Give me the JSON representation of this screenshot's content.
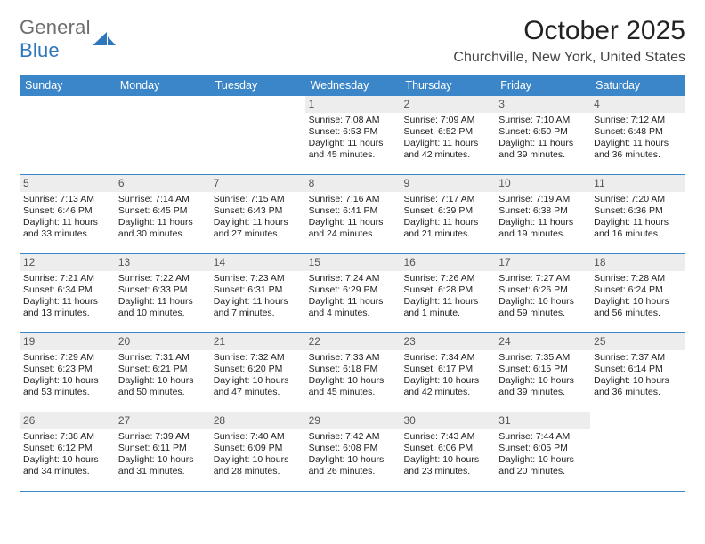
{
  "logo": {
    "word1": "General",
    "word2": "Blue"
  },
  "title": "October 2025",
  "location": "Churchville, New York, United States",
  "day_headers": [
    "Sunday",
    "Monday",
    "Tuesday",
    "Wednesday",
    "Thursday",
    "Friday",
    "Saturday"
  ],
  "colors": {
    "header_bg": "#3b86c9",
    "header_text": "#ffffff",
    "daynum_bg": "#ededed",
    "row_border": "#3b86c9",
    "logo_gray": "#6d6d6d",
    "logo_blue": "#2f77bd"
  },
  "weeks": [
    [
      {
        "blank": true
      },
      {
        "blank": true
      },
      {
        "blank": true
      },
      {
        "num": "1",
        "sunrise": "Sunrise: 7:08 AM",
        "sunset": "Sunset: 6:53 PM",
        "daylight": "Daylight: 11 hours and 45 minutes."
      },
      {
        "num": "2",
        "sunrise": "Sunrise: 7:09 AM",
        "sunset": "Sunset: 6:52 PM",
        "daylight": "Daylight: 11 hours and 42 minutes."
      },
      {
        "num": "3",
        "sunrise": "Sunrise: 7:10 AM",
        "sunset": "Sunset: 6:50 PM",
        "daylight": "Daylight: 11 hours and 39 minutes."
      },
      {
        "num": "4",
        "sunrise": "Sunrise: 7:12 AM",
        "sunset": "Sunset: 6:48 PM",
        "daylight": "Daylight: 11 hours and 36 minutes."
      }
    ],
    [
      {
        "num": "5",
        "sunrise": "Sunrise: 7:13 AM",
        "sunset": "Sunset: 6:46 PM",
        "daylight": "Daylight: 11 hours and 33 minutes."
      },
      {
        "num": "6",
        "sunrise": "Sunrise: 7:14 AM",
        "sunset": "Sunset: 6:45 PM",
        "daylight": "Daylight: 11 hours and 30 minutes."
      },
      {
        "num": "7",
        "sunrise": "Sunrise: 7:15 AM",
        "sunset": "Sunset: 6:43 PM",
        "daylight": "Daylight: 11 hours and 27 minutes."
      },
      {
        "num": "8",
        "sunrise": "Sunrise: 7:16 AM",
        "sunset": "Sunset: 6:41 PM",
        "daylight": "Daylight: 11 hours and 24 minutes."
      },
      {
        "num": "9",
        "sunrise": "Sunrise: 7:17 AM",
        "sunset": "Sunset: 6:39 PM",
        "daylight": "Daylight: 11 hours and 21 minutes."
      },
      {
        "num": "10",
        "sunrise": "Sunrise: 7:19 AM",
        "sunset": "Sunset: 6:38 PM",
        "daylight": "Daylight: 11 hours and 19 minutes."
      },
      {
        "num": "11",
        "sunrise": "Sunrise: 7:20 AM",
        "sunset": "Sunset: 6:36 PM",
        "daylight": "Daylight: 11 hours and 16 minutes."
      }
    ],
    [
      {
        "num": "12",
        "sunrise": "Sunrise: 7:21 AM",
        "sunset": "Sunset: 6:34 PM",
        "daylight": "Daylight: 11 hours and 13 minutes."
      },
      {
        "num": "13",
        "sunrise": "Sunrise: 7:22 AM",
        "sunset": "Sunset: 6:33 PM",
        "daylight": "Daylight: 11 hours and 10 minutes."
      },
      {
        "num": "14",
        "sunrise": "Sunrise: 7:23 AM",
        "sunset": "Sunset: 6:31 PM",
        "daylight": "Daylight: 11 hours and 7 minutes."
      },
      {
        "num": "15",
        "sunrise": "Sunrise: 7:24 AM",
        "sunset": "Sunset: 6:29 PM",
        "daylight": "Daylight: 11 hours and 4 minutes."
      },
      {
        "num": "16",
        "sunrise": "Sunrise: 7:26 AM",
        "sunset": "Sunset: 6:28 PM",
        "daylight": "Daylight: 11 hours and 1 minute."
      },
      {
        "num": "17",
        "sunrise": "Sunrise: 7:27 AM",
        "sunset": "Sunset: 6:26 PM",
        "daylight": "Daylight: 10 hours and 59 minutes."
      },
      {
        "num": "18",
        "sunrise": "Sunrise: 7:28 AM",
        "sunset": "Sunset: 6:24 PM",
        "daylight": "Daylight: 10 hours and 56 minutes."
      }
    ],
    [
      {
        "num": "19",
        "sunrise": "Sunrise: 7:29 AM",
        "sunset": "Sunset: 6:23 PM",
        "daylight": "Daylight: 10 hours and 53 minutes."
      },
      {
        "num": "20",
        "sunrise": "Sunrise: 7:31 AM",
        "sunset": "Sunset: 6:21 PM",
        "daylight": "Daylight: 10 hours and 50 minutes."
      },
      {
        "num": "21",
        "sunrise": "Sunrise: 7:32 AM",
        "sunset": "Sunset: 6:20 PM",
        "daylight": "Daylight: 10 hours and 47 minutes."
      },
      {
        "num": "22",
        "sunrise": "Sunrise: 7:33 AM",
        "sunset": "Sunset: 6:18 PM",
        "daylight": "Daylight: 10 hours and 45 minutes."
      },
      {
        "num": "23",
        "sunrise": "Sunrise: 7:34 AM",
        "sunset": "Sunset: 6:17 PM",
        "daylight": "Daylight: 10 hours and 42 minutes."
      },
      {
        "num": "24",
        "sunrise": "Sunrise: 7:35 AM",
        "sunset": "Sunset: 6:15 PM",
        "daylight": "Daylight: 10 hours and 39 minutes."
      },
      {
        "num": "25",
        "sunrise": "Sunrise: 7:37 AM",
        "sunset": "Sunset: 6:14 PM",
        "daylight": "Daylight: 10 hours and 36 minutes."
      }
    ],
    [
      {
        "num": "26",
        "sunrise": "Sunrise: 7:38 AM",
        "sunset": "Sunset: 6:12 PM",
        "daylight": "Daylight: 10 hours and 34 minutes."
      },
      {
        "num": "27",
        "sunrise": "Sunrise: 7:39 AM",
        "sunset": "Sunset: 6:11 PM",
        "daylight": "Daylight: 10 hours and 31 minutes."
      },
      {
        "num": "28",
        "sunrise": "Sunrise: 7:40 AM",
        "sunset": "Sunset: 6:09 PM",
        "daylight": "Daylight: 10 hours and 28 minutes."
      },
      {
        "num": "29",
        "sunrise": "Sunrise: 7:42 AM",
        "sunset": "Sunset: 6:08 PM",
        "daylight": "Daylight: 10 hours and 26 minutes."
      },
      {
        "num": "30",
        "sunrise": "Sunrise: 7:43 AM",
        "sunset": "Sunset: 6:06 PM",
        "daylight": "Daylight: 10 hours and 23 minutes."
      },
      {
        "num": "31",
        "sunrise": "Sunrise: 7:44 AM",
        "sunset": "Sunset: 6:05 PM",
        "daylight": "Daylight: 10 hours and 20 minutes."
      },
      {
        "blank": true
      }
    ]
  ]
}
